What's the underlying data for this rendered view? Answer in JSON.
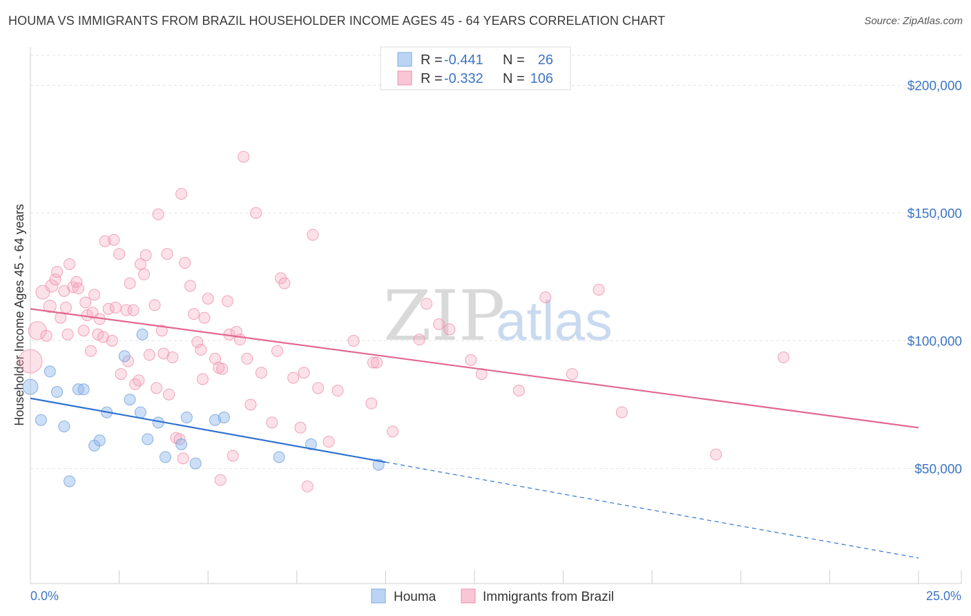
{
  "title": "HOUMA VS IMMIGRANTS FROM BRAZIL HOUSEHOLDER INCOME AGES 45 - 64 YEARS CORRELATION CHART",
  "source": "Source: ZipAtlas.com",
  "watermark": {
    "zip": "ZIP",
    "atlas": "atlas"
  },
  "chart_data": {
    "type": "scatter",
    "xlabel": "",
    "ylabel": "Householder Income Ages 45 - 64 years",
    "xlim": [
      0,
      25
    ],
    "ylim": [
      5000,
      215000
    ],
    "x_tick_labels": [
      "0.0%",
      "25.0%"
    ],
    "y_ticks": [
      {
        "value": 200000,
        "label": "$200,000"
      },
      {
        "value": 150000,
        "label": "$150,000"
      },
      {
        "value": 100000,
        "label": "$100,000"
      },
      {
        "value": 50000,
        "label": "$50,000"
      }
    ],
    "legend": [
      {
        "series": "Houma",
        "r_label": "R =",
        "r_value": "-0.441",
        "n_label": "N =",
        "n_value": "26",
        "color": "#8fb8ea"
      },
      {
        "series": "Immigrants from Brazil",
        "r_label": "R =",
        "r_value": "-0.332",
        "n_label": "N =",
        "n_value": "106",
        "color": "#f5a9c0"
      }
    ],
    "series": [
      {
        "name": "Houma",
        "color": "#8fb8ea",
        "stroke": "#6f9fdb",
        "trend": {
          "x0": 0.0,
          "y0": 77500,
          "x1": 10.0,
          "y1": 52500,
          "dash_to_x": 25.0,
          "dash_to_y": 15000,
          "color": "#2f72d0"
        },
        "points": [
          [
            0.0,
            82000,
            22
          ],
          [
            0.3,
            69000,
            16
          ],
          [
            0.55,
            88000,
            16
          ],
          [
            0.75,
            80000,
            16
          ],
          [
            0.95,
            66500,
            16
          ],
          [
            1.1,
            45000,
            16
          ],
          [
            1.35,
            81000,
            16
          ],
          [
            1.5,
            81000,
            16
          ],
          [
            1.8,
            59000,
            16
          ],
          [
            1.95,
            61000,
            16
          ],
          [
            2.15,
            72000,
            16
          ],
          [
            2.65,
            94000,
            16
          ],
          [
            2.8,
            77000,
            16
          ],
          [
            3.1,
            72000,
            16
          ],
          [
            3.15,
            102500,
            16
          ],
          [
            3.3,
            61500,
            16
          ],
          [
            3.6,
            68000,
            16
          ],
          [
            3.8,
            54500,
            16
          ],
          [
            4.25,
            59500,
            16
          ],
          [
            4.4,
            70000,
            16
          ],
          [
            4.65,
            52000,
            16
          ],
          [
            5.2,
            69000,
            16
          ],
          [
            5.45,
            70000,
            16
          ],
          [
            7.0,
            54500,
            16
          ],
          [
            7.9,
            59500,
            16
          ],
          [
            9.8,
            51500,
            16
          ]
        ]
      },
      {
        "name": "Immigrants from Brazil",
        "color": "#f5a9c0",
        "stroke": "#ec8fab",
        "trend": {
          "x0": 0.0,
          "y0": 112500,
          "x1": 25.0,
          "y1": 66000,
          "color": "#e2668f"
        },
        "points": [
          [
            0.0,
            92000,
            34
          ],
          [
            0.2,
            104000,
            26
          ],
          [
            0.35,
            119000,
            20
          ],
          [
            0.45,
            102000,
            16
          ],
          [
            0.55,
            113500,
            18
          ],
          [
            0.6,
            121500,
            18
          ],
          [
            0.7,
            124000,
            16
          ],
          [
            0.75,
            127000,
            16
          ],
          [
            0.85,
            109000,
            16
          ],
          [
            0.95,
            119500,
            16
          ],
          [
            1.0,
            113000,
            16
          ],
          [
            1.05,
            102500,
            16
          ],
          [
            1.1,
            130000,
            16
          ],
          [
            1.2,
            121000,
            16
          ],
          [
            1.3,
            123000,
            16
          ],
          [
            1.35,
            120500,
            16
          ],
          [
            1.5,
            104000,
            16
          ],
          [
            1.55,
            115000,
            16
          ],
          [
            1.6,
            110000,
            16
          ],
          [
            1.7,
            96000,
            16
          ],
          [
            1.75,
            111000,
            16
          ],
          [
            1.8,
            118000,
            16
          ],
          [
            1.9,
            102500,
            16
          ],
          [
            1.95,
            108500,
            16
          ],
          [
            2.05,
            101500,
            16
          ],
          [
            2.1,
            139000,
            16
          ],
          [
            2.2,
            112500,
            16
          ],
          [
            2.3,
            100000,
            16
          ],
          [
            2.35,
            139500,
            16
          ],
          [
            2.4,
            113000,
            16
          ],
          [
            2.5,
            134000,
            16
          ],
          [
            2.55,
            87000,
            16
          ],
          [
            2.7,
            112000,
            16
          ],
          [
            2.75,
            92000,
            16
          ],
          [
            2.8,
            122500,
            16
          ],
          [
            2.9,
            112000,
            16
          ],
          [
            2.95,
            83000,
            16
          ],
          [
            3.05,
            84500,
            16
          ],
          [
            3.1,
            130000,
            16
          ],
          [
            3.2,
            126000,
            16
          ],
          [
            3.25,
            133500,
            16
          ],
          [
            3.35,
            94500,
            16
          ],
          [
            3.5,
            114000,
            16
          ],
          [
            3.55,
            81500,
            16
          ],
          [
            3.6,
            149500,
            16
          ],
          [
            3.7,
            104000,
            16
          ],
          [
            3.75,
            95000,
            16
          ],
          [
            3.85,
            134000,
            16
          ],
          [
            3.9,
            79000,
            16
          ],
          [
            4.0,
            93500,
            16
          ],
          [
            4.1,
            62000,
            16
          ],
          [
            4.2,
            61500,
            16
          ],
          [
            4.25,
            157500,
            16
          ],
          [
            4.3,
            54000,
            16
          ],
          [
            4.35,
            130500,
            16
          ],
          [
            4.5,
            121500,
            16
          ],
          [
            4.6,
            110500,
            16
          ],
          [
            4.7,
            99500,
            16
          ],
          [
            4.8,
            96500,
            16
          ],
          [
            4.85,
            85000,
            16
          ],
          [
            4.9,
            109000,
            16
          ],
          [
            5.0,
            116500,
            16
          ],
          [
            5.2,
            93000,
            16
          ],
          [
            5.3,
            89500,
            16
          ],
          [
            5.35,
            45500,
            16
          ],
          [
            5.4,
            89000,
            16
          ],
          [
            5.55,
            115500,
            16
          ],
          [
            5.6,
            102500,
            16
          ],
          [
            5.7,
            55000,
            16
          ],
          [
            5.8,
            103500,
            16
          ],
          [
            5.9,
            100500,
            16
          ],
          [
            6.0,
            172000,
            16
          ],
          [
            6.1,
            93000,
            16
          ],
          [
            6.2,
            75000,
            16
          ],
          [
            6.35,
            150000,
            16
          ],
          [
            6.5,
            87500,
            16
          ],
          [
            6.8,
            68000,
            16
          ],
          [
            6.95,
            96000,
            16
          ],
          [
            7.05,
            124500,
            16
          ],
          [
            7.15,
            122500,
            16
          ],
          [
            7.4,
            85500,
            16
          ],
          [
            7.6,
            66000,
            16
          ],
          [
            7.7,
            87500,
            16
          ],
          [
            7.8,
            43000,
            16
          ],
          [
            7.95,
            141500,
            16
          ],
          [
            8.1,
            81500,
            16
          ],
          [
            8.4,
            60500,
            16
          ],
          [
            8.65,
            80500,
            16
          ],
          [
            9.1,
            100000,
            16
          ],
          [
            9.6,
            75500,
            16
          ],
          [
            9.65,
            91500,
            16
          ],
          [
            9.75,
            91500,
            16
          ],
          [
            10.2,
            64500,
            16
          ],
          [
            10.95,
            100500,
            16
          ],
          [
            11.15,
            114500,
            16
          ],
          [
            11.5,
            106500,
            16
          ],
          [
            11.8,
            104500,
            16
          ],
          [
            12.4,
            92500,
            16
          ],
          [
            12.7,
            87000,
            16
          ],
          [
            13.75,
            80500,
            16
          ],
          [
            14.5,
            117000,
            16
          ],
          [
            15.25,
            87000,
            16
          ],
          [
            16.0,
            120000,
            16
          ],
          [
            16.65,
            72000,
            16
          ],
          [
            19.3,
            55500,
            16
          ],
          [
            21.2,
            93500,
            16
          ]
        ]
      }
    ]
  }
}
